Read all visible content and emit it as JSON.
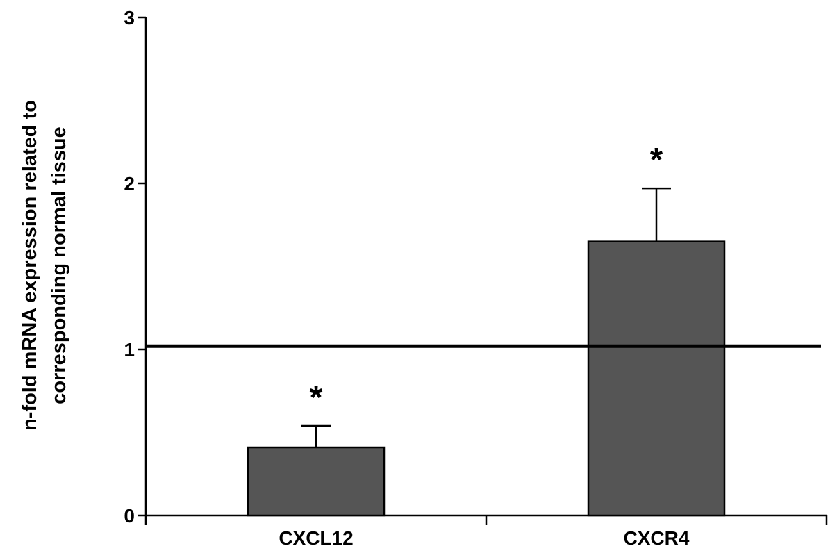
{
  "chart_data": {
    "type": "bar",
    "categories": [
      "CXCL12",
      "CXCR4"
    ],
    "values": [
      0.41,
      1.65
    ],
    "error_bars": [
      0.13,
      0.32
    ],
    "significance_markers": [
      "*",
      "*"
    ],
    "reference_line": 1.02,
    "ylabel": [
      "n-fold mRNA expression related to",
      "corresponding normal tissue"
    ],
    "xlabel": "",
    "ylim": [
      0,
      3
    ],
    "yticks": [
      "0",
      "1",
      "2",
      "3"
    ],
    "grid": false,
    "legend": "none",
    "bar_color": "#555555",
    "axis_color": "#000000"
  }
}
